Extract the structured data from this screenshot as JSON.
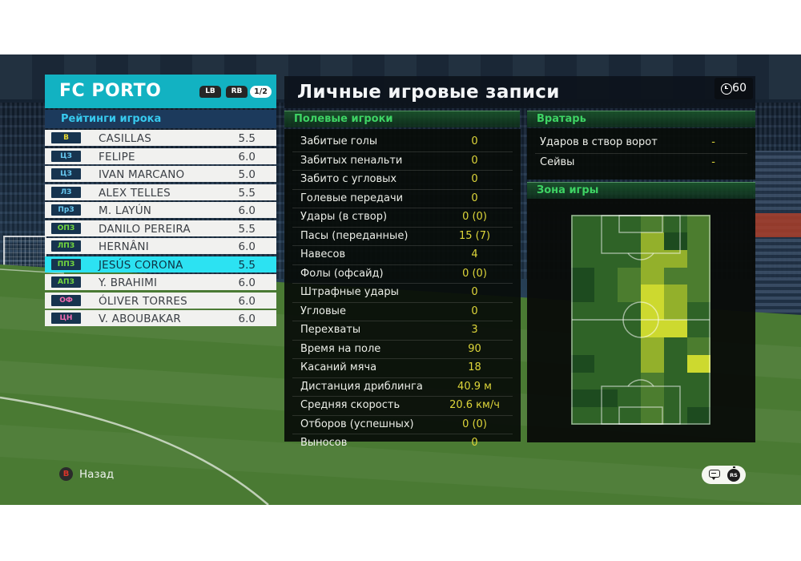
{
  "window": {
    "clock_label": "60"
  },
  "team_panel": {
    "title": "FC PORTO",
    "lb_label": "LB",
    "rb_label": "RB",
    "page_label": "1/2",
    "ratings_header": "Рейтинги игрока",
    "players": [
      {
        "pos": "В",
        "name": "CASILLAS",
        "rating": "5.5"
      },
      {
        "pos": "ЦЗ",
        "name": "FELIPE",
        "rating": "6.0"
      },
      {
        "pos": "ЦЗ",
        "name": "IVAN MARCANO",
        "rating": "5.0"
      },
      {
        "pos": "ЛЗ",
        "name": "ALEX TELLES",
        "rating": "5.5"
      },
      {
        "pos": "ПрЗ",
        "name": "M. LAYÚN",
        "rating": "6.0"
      },
      {
        "pos": "ОПЗ",
        "name": "DANILO PEREIRA",
        "rating": "5.5"
      },
      {
        "pos": "ЛПЗ",
        "name": "HERNÂNI",
        "rating": "6.0"
      },
      {
        "pos": "ППЗ",
        "name": "JESÚS CORONA",
        "rating": "5.5"
      },
      {
        "pos": "АПЗ",
        "name": "Y. BRAHIMI",
        "rating": "6.0"
      },
      {
        "pos": "ОФ",
        "name": "ÓLIVER TORRES",
        "rating": "6.0"
      },
      {
        "pos": "ЦН",
        "name": "V. ABOUBAKAR",
        "rating": "6.0"
      }
    ],
    "selected_player": "JESÚS CORONA"
  },
  "main": {
    "title": "Личные игровые записи",
    "field_header": "Полевые игроки",
    "stats": [
      {
        "label": "Забитые голы",
        "value": "0"
      },
      {
        "label": "Забитых пенальти",
        "value": "0"
      },
      {
        "label": "Забито с угловых",
        "value": "0"
      },
      {
        "label": "Голевые передачи",
        "value": "0"
      },
      {
        "label": "Удары (в створ)",
        "value": "0 (0)"
      },
      {
        "label": "Пасы (переданные)",
        "value": "15 (7)"
      },
      {
        "label": "Навесов",
        "value": "4"
      },
      {
        "label": "Фолы (офсайд)",
        "value": "0 (0)"
      },
      {
        "label": "Штрафные удары",
        "value": "0"
      },
      {
        "label": "Угловые",
        "value": "0"
      },
      {
        "label": "Перехваты",
        "value": "3"
      },
      {
        "label": "Время на поле",
        "value": "90"
      },
      {
        "label": "Касаний мяча",
        "value": "18"
      },
      {
        "label": "Дистанция дриблинга",
        "value": "40.9 м"
      },
      {
        "label": "Средняя скорость",
        "value": "20.6 км/ч"
      },
      {
        "label": "Отборов (успешных)",
        "value": "0 (0)"
      },
      {
        "label": "Выносов",
        "value": "0"
      }
    ],
    "gk_header": "Вратарь",
    "gk_stats": [
      {
        "label": "Ударов в створ ворот",
        "value": "-"
      },
      {
        "label": "Сейвы",
        "value": "-"
      }
    ],
    "zone_header": "Зона игры"
  },
  "footer": {
    "back_label": "Назад",
    "back_key": "B"
  },
  "heatmap": {
    "cols": 6,
    "rows": 12,
    "palette": [
      "#1d4b1f",
      "#2f6327",
      "#4c7d2f",
      "#93b02b",
      "#cdd92f"
    ],
    "grid": [
      [
        1,
        1,
        1,
        2,
        1,
        2
      ],
      [
        1,
        1,
        1,
        3,
        0,
        2
      ],
      [
        1,
        1,
        1,
        3,
        3,
        2
      ],
      [
        0,
        1,
        2,
        3,
        2,
        2
      ],
      [
        0,
        1,
        2,
        4,
        3,
        2
      ],
      [
        1,
        1,
        1,
        4,
        3,
        1
      ],
      [
        1,
        1,
        1,
        4,
        4,
        1
      ],
      [
        1,
        1,
        1,
        3,
        1,
        2
      ],
      [
        0,
        1,
        1,
        3,
        1,
        4
      ],
      [
        1,
        1,
        1,
        2,
        1,
        1
      ],
      [
        0,
        0,
        1,
        2,
        1,
        1
      ],
      [
        1,
        1,
        1,
        2,
        1,
        0
      ]
    ]
  },
  "colors": {
    "accent_teal": "#12b2c2",
    "selected_cyan": "#2ce2f2",
    "section_green": "#3ed364",
    "value_yellow": "#ded63a",
    "pos_gk": "#e8d832",
    "pos_df": "#67c7ef",
    "pos_mf": "#74d93e",
    "pos_fw": "#f26bb0"
  }
}
